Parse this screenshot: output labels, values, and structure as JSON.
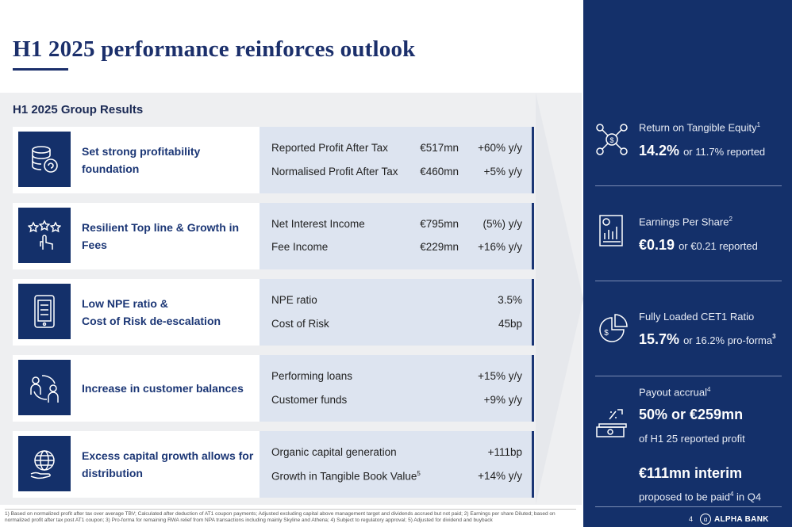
{
  "title": "H1 2025 performance reinforces outlook",
  "results": {
    "heading": "H1 2025 Group Results",
    "rows": [
      {
        "icon": "database-coin-icon",
        "label": "Set strong profitability foundation",
        "metrics": [
          {
            "name": "Reported Profit After Tax",
            "value": "€517mn",
            "change": "+60% y/y"
          },
          {
            "name": "Normalised Profit After Tax",
            "value": "€460mn",
            "change": "+5% y/y"
          }
        ]
      },
      {
        "icon": "star-rating-hand-icon",
        "label": "Resilient Top line & Growth in Fees",
        "metrics": [
          {
            "name": "Net Interest Income",
            "value": "€795mn",
            "change": "(5%) y/y"
          },
          {
            "name": "Fee Income",
            "value": "€229mn",
            "change": "+16% y/y"
          }
        ]
      },
      {
        "icon": "mobile-bank-icon",
        "label": "Low NPE ratio &\nCost of Risk de-escalation",
        "metrics": [
          {
            "name": "NPE ratio",
            "value": "",
            "change": "3.5%"
          },
          {
            "name": "Cost of Risk",
            "value": "",
            "change": "45bp"
          }
        ]
      },
      {
        "icon": "people-exchange-icon",
        "label": "Increase in customer balances",
        "metrics": [
          {
            "name": "Performing loans",
            "value": "",
            "change": "+15% y/y"
          },
          {
            "name": "Customer funds",
            "value": "",
            "change": "+9% y/y"
          }
        ]
      },
      {
        "icon": "globe-hand-icon",
        "label": "Excess capital growth allows for distribution",
        "metrics": [
          {
            "name": "Organic capital generation",
            "value": "",
            "change": "+111bp"
          },
          {
            "name": "Growth in Tangible Book Value",
            "name_sup": "5",
            "value": "",
            "change": "+14% y/y"
          }
        ]
      }
    ]
  },
  "sidebar": {
    "rote": {
      "icon": "network-dollar-icon",
      "label": "Return on Tangible Equity",
      "label_sup": "1",
      "value": "14.2%",
      "value_sub": "or 11.7% reported"
    },
    "eps": {
      "icon": "report-chart-icon",
      "label": "Earnings Per Share",
      "label_sup": "2",
      "value": "€0.19",
      "value_sub": "or €0.21 reported"
    },
    "cet1": {
      "icon": "pie-dollar-icon",
      "label": "Fully Loaded CET1 Ratio",
      "value": "15.7%",
      "value_sub": "or 16.2% pro-forma",
      "value_sup": "3"
    },
    "payout": {
      "icon": "cash-stack-icon",
      "label": "Payout accrual",
      "label_sup": "4",
      "value": "50% or €259mn",
      "value_caption": "of H1 25 reported profit",
      "interim_value": "€111mn interim",
      "interim_caption_a": "proposed to be paid",
      "interim_caption_sup": "4",
      "interim_caption_b": " in Q4"
    }
  },
  "footnote": "1) Based on normalized profit after tax over average TBV; Calculated after deduction of AT1 coupon payments; Adjusted excluding capital above management target and dividends accrued but not paid; 2) Earnings per share Diluted; based on normalized profit after tax post AT1 coupon; 3) Pro-forma for remaining RWA relief from NPA transactions including mainly Skyline and Athena; 4) Subject to regulatory approval; 5) Adjusted for dividend and buyback",
  "page_number": "4",
  "brand": {
    "name": "ALPHA BANK",
    "mark": "α"
  },
  "colors": {
    "navy": "#14306a",
    "panel": "#eeeff1",
    "metric_bg": "#dde4f0"
  }
}
